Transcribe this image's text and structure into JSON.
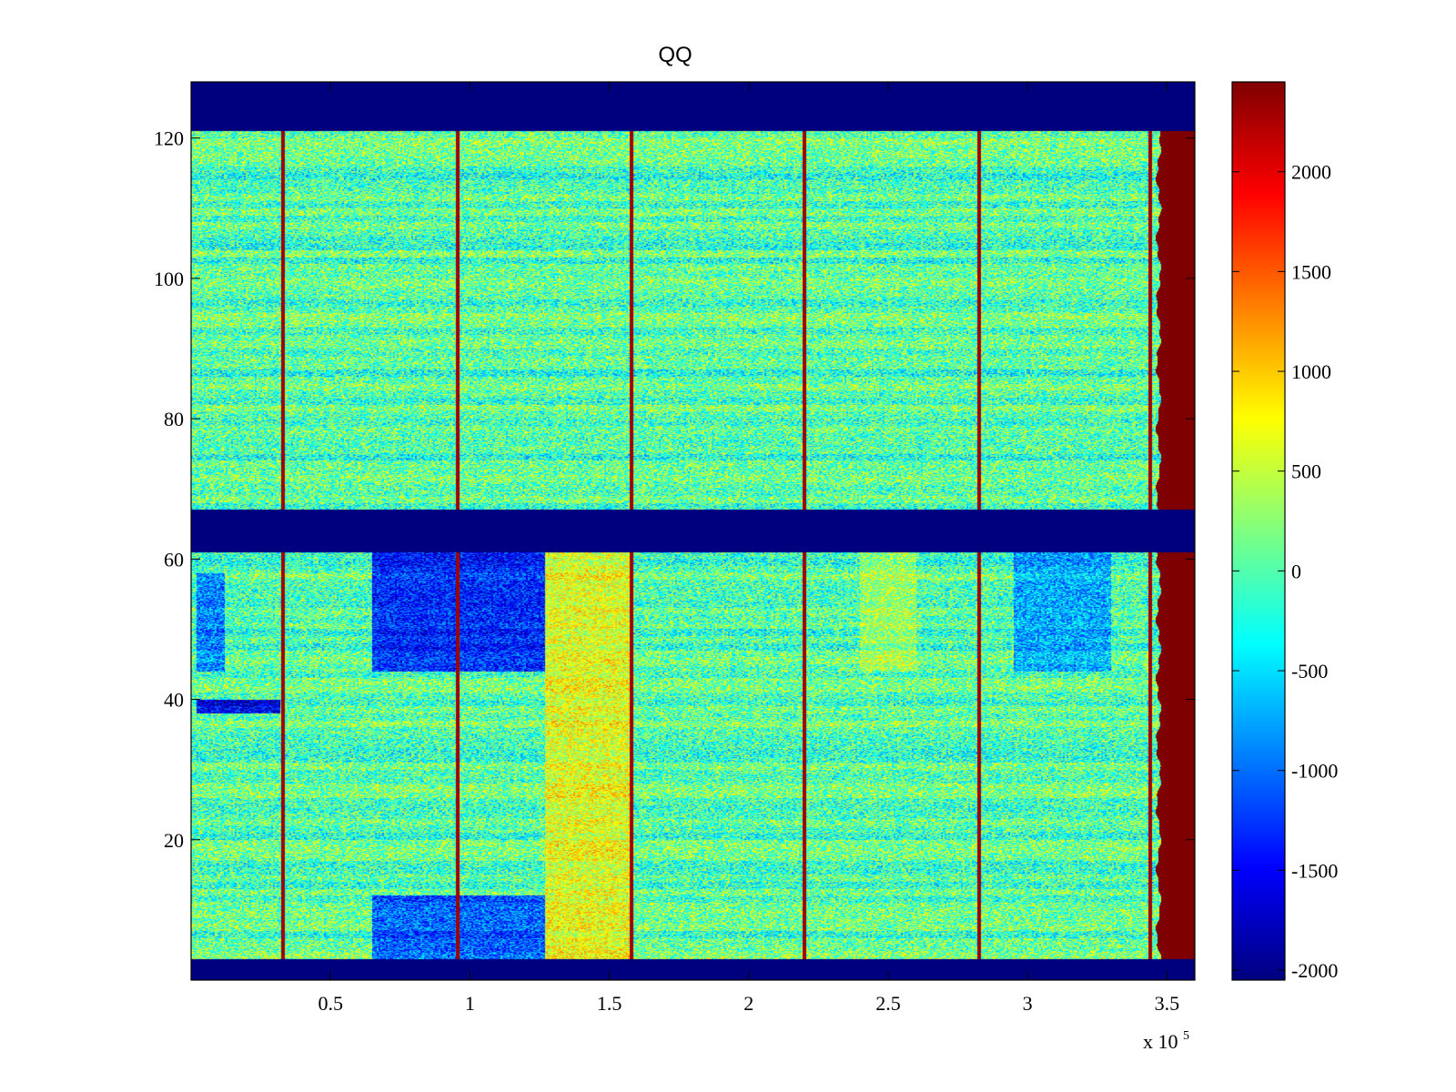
{
  "chart_data": {
    "type": "heatmap",
    "title": "QQ",
    "xlabel": "",
    "ylabel": "",
    "x_multiplier_label": {
      "prefix": "x 10",
      "exponent": "5"
    },
    "xlim": [
      0,
      360000
    ],
    "ylim": [
      0,
      128
    ],
    "x_tick_values": [
      50000,
      100000,
      150000,
      200000,
      250000,
      300000,
      350000
    ],
    "x_tick_labels": [
      "0.5",
      "1",
      "1.5",
      "2",
      "2.5",
      "3",
      "3.5"
    ],
    "y_tick_values": [
      20,
      40,
      60,
      80,
      100,
      120
    ],
    "y_tick_labels": [
      "20",
      "40",
      "60",
      "80",
      "100",
      "120"
    ],
    "colormap": "jet",
    "clim": [
      -2050,
      2450
    ],
    "colorbar_tick_values": [
      2000,
      1500,
      1000,
      500,
      0,
      -500,
      -1000,
      -1500,
      -2000
    ],
    "colorbar_tick_labels": [
      "2000",
      "1500",
      "1000",
      "500",
      "0",
      "-500",
      "-1000",
      "-1500",
      "-2000"
    ],
    "colors": [
      "#00007f",
      "#0000ff",
      "#00ffff",
      "#ffff00",
      "#ff0000",
      "#7f0000"
    ],
    "background_value": 0,
    "fill_bands": [
      {
        "y_range": [
          0,
          3
        ],
        "value": -2050
      },
      {
        "y_range": [
          61,
          67
        ],
        "value": -2050
      },
      {
        "y_range": [
          121,
          128
        ],
        "value": -2050
      }
    ],
    "right_edge_value": 2450,
    "right_edge_start_x": 347000,
    "vertical_lines": [
      {
        "x": 33000,
        "value": 2300
      },
      {
        "x": 95500,
        "value": 2300
      },
      {
        "x": 158000,
        "value": 2300
      },
      {
        "x": 220000,
        "value": 2300
      },
      {
        "x": 282500,
        "value": 2300
      },
      {
        "x": 344000,
        "value": 2300
      }
    ],
    "regions": [
      {
        "x_range": [
          65000,
          127000
        ],
        "y_range": [
          44,
          61
        ],
        "value": -1300
      },
      {
        "x_range": [
          65000,
          127000
        ],
        "y_range": [
          3,
          12
        ],
        "value": -1100
      },
      {
        "x_range": [
          127000,
          158000
        ],
        "y_range": [
          3,
          61
        ],
        "value": 650
      },
      {
        "x_range": [
          2000,
          32000
        ],
        "y_range": [
          38,
          40
        ],
        "value": -1600
      },
      {
        "x_range": [
          2000,
          12000
        ],
        "y_range": [
          44,
          58
        ],
        "value": -900
      },
      {
        "x_range": [
          295000,
          330000
        ],
        "y_range": [
          44,
          61
        ],
        "value": -700
      },
      {
        "x_range": [
          240000,
          260000
        ],
        "y_range": [
          44,
          61
        ],
        "value": 350
      }
    ],
    "noise_amplitude": 700,
    "grid": false
  }
}
